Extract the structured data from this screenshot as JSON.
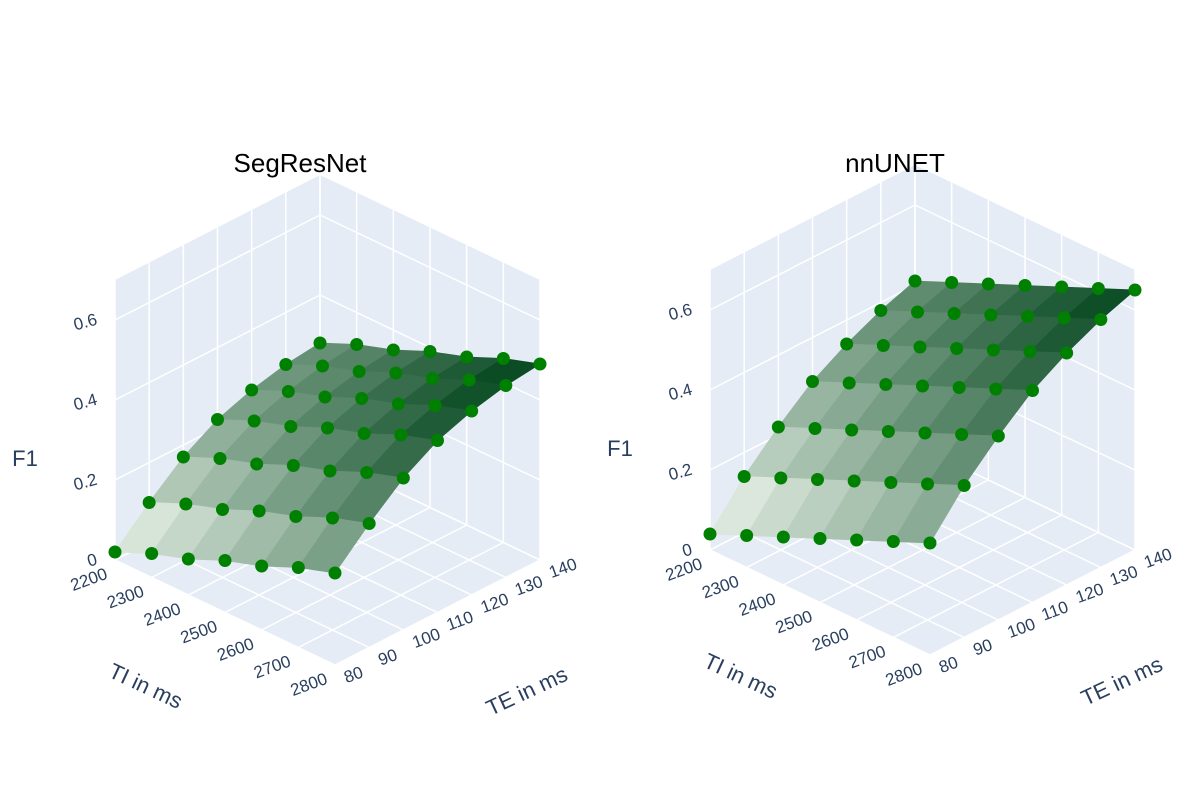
{
  "chart_data": [
    {
      "type": "surface",
      "title": "SegResNet",
      "x_label": "TI in ms",
      "y_label": "TE in ms",
      "z_label": "F1",
      "x": [
        2200,
        2300,
        2400,
        2500,
        2600,
        2700,
        2800
      ],
      "y": [
        80,
        90,
        100,
        110,
        120,
        130,
        140
      ],
      "z": [
        [
          0.02,
          0.1,
          0.17,
          0.22,
          0.25,
          0.27,
          0.28
        ],
        [
          0.06,
          0.14,
          0.21,
          0.26,
          0.29,
          0.31,
          0.32
        ],
        [
          0.09,
          0.17,
          0.24,
          0.29,
          0.32,
          0.34,
          0.35
        ],
        [
          0.13,
          0.21,
          0.28,
          0.33,
          0.36,
          0.38,
          0.39
        ],
        [
          0.16,
          0.24,
          0.31,
          0.36,
          0.39,
          0.41,
          0.42
        ],
        [
          0.2,
          0.28,
          0.35,
          0.4,
          0.43,
          0.45,
          0.46
        ],
        [
          0.23,
          0.31,
          0.38,
          0.43,
          0.46,
          0.48,
          0.49
        ]
      ],
      "xlim": [
        2200,
        2800
      ],
      "ylim": [
        80,
        140
      ],
      "zlim": [
        0,
        0.7
      ],
      "xticks": [
        2200,
        2300,
        2400,
        2500,
        2600,
        2700,
        2800
      ],
      "yticks": [
        80,
        90,
        100,
        110,
        120,
        130,
        140
      ],
      "zticks": [
        0,
        0.2,
        0.4,
        0.6
      ],
      "colorscale": [
        "#f7fcf5",
        "#00441b"
      ],
      "marker_color": "#008000",
      "grid": true
    },
    {
      "type": "surface",
      "title": "nnUNET",
      "x_label": "TI in ms",
      "y_label": "TE in ms",
      "z_label": "F1",
      "x": [
        2200,
        2300,
        2400,
        2500,
        2600,
        2700,
        2800
      ],
      "y": [
        80,
        90,
        100,
        110,
        120,
        130,
        140
      ],
      "z": [
        [
          0.04,
          0.14,
          0.22,
          0.29,
          0.34,
          0.38,
          0.41
        ],
        [
          0.08,
          0.18,
          0.26,
          0.33,
          0.38,
          0.42,
          0.45
        ],
        [
          0.12,
          0.22,
          0.3,
          0.37,
          0.42,
          0.46,
          0.49
        ],
        [
          0.16,
          0.26,
          0.34,
          0.41,
          0.46,
          0.5,
          0.53
        ],
        [
          0.2,
          0.3,
          0.38,
          0.45,
          0.5,
          0.54,
          0.57
        ],
        [
          0.24,
          0.34,
          0.42,
          0.49,
          0.54,
          0.58,
          0.61
        ],
        [
          0.28,
          0.38,
          0.46,
          0.53,
          0.58,
          0.62,
          0.65
        ]
      ],
      "xlim": [
        2200,
        2800
      ],
      "ylim": [
        80,
        140
      ],
      "zlim": [
        0,
        0.7
      ],
      "xticks": [
        2200,
        2300,
        2400,
        2500,
        2600,
        2700,
        2800
      ],
      "yticks": [
        80,
        90,
        100,
        110,
        120,
        130,
        140
      ],
      "zticks": [
        0,
        0.2,
        0.4,
        0.6
      ],
      "colorscale": [
        "#f7fcf5",
        "#00441b"
      ],
      "marker_color": "#008000",
      "grid": true
    }
  ]
}
